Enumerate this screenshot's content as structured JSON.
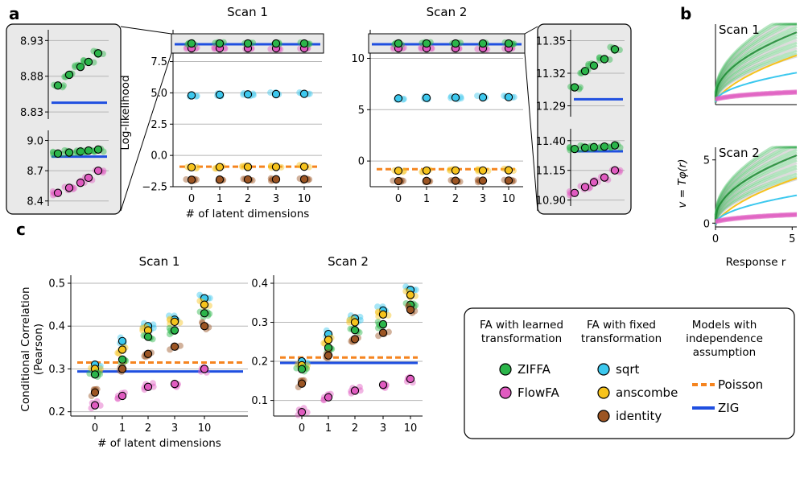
{
  "panel_letters": [
    "a",
    "b",
    "c"
  ],
  "colors": {
    "ZIFFA": "#2bb54a",
    "FlowFA": "#e05bc0",
    "sqrt": "#3cc8ee",
    "anscombe": "#f6c31c",
    "identity": "#9c5523",
    "Poisson": "#f5841f",
    "ZIG": "#1f4fe0",
    "grid": "#b5b5b5",
    "inset_bg": "#e9e9e9"
  },
  "legend": {
    "groups": [
      {
        "title": [
          "FA with learned",
          "transformation"
        ],
        "entries": [
          {
            "label": "ZIFFA",
            "kind": "marker",
            "key": "ZIFFA"
          },
          {
            "label": "FlowFA",
            "kind": "marker",
            "key": "FlowFA"
          }
        ]
      },
      {
        "title": [
          "FA with fixed",
          "transformation"
        ],
        "entries": [
          {
            "label": "sqrt",
            "kind": "marker",
            "key": "sqrt"
          },
          {
            "label": "anscombe",
            "kind": "marker",
            "key": "anscombe"
          },
          {
            "label": "identity",
            "kind": "marker",
            "key": "identity"
          }
        ]
      },
      {
        "title": [
          "Models with",
          "independence",
          "assumption"
        ],
        "entries": [
          {
            "label": "Poisson",
            "kind": "dashed-line",
            "key": "Poisson"
          },
          {
            "label": "ZIG",
            "kind": "line",
            "key": "ZIG"
          }
        ]
      }
    ]
  },
  "chart_data": [
    {
      "id": "a-scan1",
      "panel": "a",
      "type": "scatter",
      "title": "Scan 1",
      "xlabel": "# of latent dimensions",
      "ylabel": "Log-likelihood",
      "categories": [
        "0",
        "1",
        "2",
        "3",
        "10"
      ],
      "yticks": [
        -2.5,
        0.0,
        2.5,
        5.0,
        7.5
      ],
      "ytick_labels": [
        "−2.5",
        "0.0",
        "2.5",
        "5.0",
        "7.5"
      ],
      "ylim": [
        -2.5,
        9.4
      ],
      "grid": true,
      "series": [
        {
          "name": "sqrt",
          "values": [
            4.8,
            4.85,
            4.88,
            4.9,
            4.92
          ]
        },
        {
          "name": "anscombe",
          "values": [
            -0.95,
            -0.93,
            -0.92,
            -0.92,
            -0.9
          ]
        },
        {
          "name": "identity",
          "values": [
            -1.95,
            -1.93,
            -1.92,
            -1.91,
            -1.9
          ]
        }
      ],
      "hlines": [
        {
          "name": "Poisson",
          "value": -0.9
        },
        {
          "name": "ZIG",
          "value": 8.84
        }
      ],
      "top_band": {
        "ZIFFA": 8.88,
        "FlowFA": 8.55
      }
    },
    {
      "id": "a-scan1-inset-top",
      "panel": "a",
      "type": "scatter",
      "categories": [
        "0",
        "1",
        "2",
        "3",
        "10"
      ],
      "yticks": [
        8.83,
        8.88,
        8.93
      ],
      "ytick_labels": [
        "8.83",
        "8.88",
        "8.93"
      ],
      "ylim": [
        8.82,
        8.945
      ],
      "series": [
        {
          "name": "ZIFFA",
          "values": [
            8.867,
            8.882,
            8.893,
            8.9,
            8.912
          ]
        }
      ],
      "hlines": [
        {
          "name": "ZIG",
          "value": 8.843
        }
      ]
    },
    {
      "id": "a-scan1-inset-bottom",
      "panel": "a",
      "type": "scatter",
      "categories": [
        "0",
        "1",
        "2",
        "3",
        "10"
      ],
      "yticks": [
        8.4,
        8.7,
        9.0
      ],
      "ytick_labels": [
        "8.4",
        "8.7",
        "9.0"
      ],
      "ylim": [
        8.35,
        9.1
      ],
      "series": [
        {
          "name": "ZIFFA",
          "values": [
            8.87,
            8.88,
            8.89,
            8.9,
            8.91
          ]
        },
        {
          "name": "FlowFA",
          "values": [
            8.48,
            8.53,
            8.58,
            8.63,
            8.7
          ]
        }
      ],
      "hlines": [
        {
          "name": "ZIG",
          "value": 8.84
        }
      ]
    },
    {
      "id": "a-scan2",
      "panel": "a",
      "type": "scatter",
      "title": "Scan 2",
      "categories": [
        "0",
        "1",
        "2",
        "3",
        "10"
      ],
      "yticks": [
        0,
        5,
        10
      ],
      "ytick_labels": [
        "0",
        "5",
        "10"
      ],
      "ylim": [
        -2.5,
        12.0
      ],
      "grid": true,
      "series": [
        {
          "name": "sqrt",
          "values": [
            6.1,
            6.15,
            6.18,
            6.2,
            6.22
          ]
        },
        {
          "name": "anscombe",
          "values": [
            -0.95,
            -0.93,
            -0.92,
            -0.92,
            -0.9
          ]
        },
        {
          "name": "identity",
          "values": [
            -1.95,
            -1.93,
            -1.92,
            -1.91,
            -1.9
          ]
        }
      ],
      "hlines": [
        {
          "name": "Poisson",
          "value": -0.8
        },
        {
          "name": "ZIG",
          "value": 11.3
        }
      ],
      "top_band": {
        "ZIFFA": 11.33,
        "FlowFA": 11.0
      }
    },
    {
      "id": "a-scan2-inset-top",
      "panel": "a",
      "type": "scatter",
      "categories": [
        "0",
        "1",
        "2",
        "3",
        "10"
      ],
      "yticks": [
        11.29,
        11.32,
        11.35
      ],
      "ytick_labels": [
        "11.29",
        "11.32",
        "11.35"
      ],
      "ylim": [
        11.28,
        11.36
      ],
      "series": [
        {
          "name": "ZIFFA",
          "values": [
            11.307,
            11.322,
            11.327,
            11.333,
            11.342
          ]
        }
      ],
      "hlines": [
        {
          "name": "ZIG",
          "value": 11.296
        }
      ]
    },
    {
      "id": "a-scan2-inset-bottom",
      "panel": "a",
      "type": "scatter",
      "categories": [
        "0",
        "1",
        "2",
        "3",
        "10"
      ],
      "yticks": [
        10.9,
        11.15,
        11.4
      ],
      "ytick_labels": [
        "10.90",
        "11.15",
        "11.40"
      ],
      "ylim": [
        10.85,
        11.5
      ],
      "series": [
        {
          "name": "ZIFFA",
          "values": [
            11.33,
            11.34,
            11.345,
            11.35,
            11.36
          ]
        },
        {
          "name": "FlowFA",
          "values": [
            10.96,
            11.01,
            11.05,
            11.09,
            11.15
          ]
        }
      ],
      "hlines": [
        {
          "name": "ZIG",
          "value": 11.31
        }
      ]
    },
    {
      "id": "b",
      "panel": "b",
      "type": "line",
      "xlabel": "Response r",
      "ylabel": "v = Tφ(r)",
      "subplots": [
        {
          "title": "Scan 1",
          "show_axis_ticks": false
        },
        {
          "title": "Scan 2",
          "show_axis_ticks": true,
          "xticks": [
            0,
            5
          ],
          "yticks": [
            0,
            5
          ]
        }
      ],
      "xlim": [
        0,
        5.3
      ],
      "ylim": [
        -0.3,
        6.0
      ],
      "curves": [
        {
          "name": "ZIFFA",
          "form": "a*sqrt(r)+b",
          "a": 2.2,
          "b": 0.3
        },
        {
          "name": "anscombe",
          "form": "2*sqrt(r+3/8)-1.2",
          "a": 2,
          "b": -1.2
        },
        {
          "name": "sqrt",
          "form": "a*sqrt(r)+b",
          "a": 1.0,
          "b": -0.1
        },
        {
          "name": "FlowFA",
          "form": "a*log(1+r)+b",
          "a": 0.3,
          "b": 0.15
        }
      ]
    },
    {
      "id": "c-scan1",
      "panel": "c",
      "type": "scatter",
      "title": "Scan 1",
      "xlabel": "# of latent dimensions",
      "ylabel": "Conditional Correlation\n(Pearson)",
      "categories": [
        "0",
        "1",
        "2",
        "3",
        "10"
      ],
      "yticks": [
        0.2,
        0.3,
        0.4,
        0.5
      ],
      "ytick_labels": [
        "0.2",
        "0.3",
        "0.4",
        "0.5"
      ],
      "ylim": [
        0.19,
        0.5
      ],
      "grid": true,
      "series": [
        {
          "name": "sqrt",
          "values": [
            0.31,
            0.365,
            0.4,
            0.415,
            0.465
          ]
        },
        {
          "name": "anscombe",
          "values": [
            0.3,
            0.345,
            0.39,
            0.41,
            0.45
          ]
        },
        {
          "name": "ZIFFA",
          "values": [
            0.287,
            0.322,
            0.375,
            0.39,
            0.43
          ]
        },
        {
          "name": "identity",
          "values": [
            0.245,
            0.3,
            0.335,
            0.352,
            0.4
          ]
        },
        {
          "name": "FlowFA",
          "values": [
            0.215,
            0.237,
            0.258,
            0.265,
            0.3
          ]
        }
      ],
      "hlines": [
        {
          "name": "Poisson",
          "value": 0.315
        },
        {
          "name": "ZIG",
          "value": 0.294
        }
      ]
    },
    {
      "id": "c-scan2",
      "panel": "c",
      "type": "scatter",
      "title": "Scan 2",
      "categories": [
        "0",
        "1",
        "2",
        "3",
        "10"
      ],
      "yticks": [
        0.1,
        0.2,
        0.3,
        0.4
      ],
      "ytick_labels": [
        "0.1",
        "0.2",
        "0.3",
        "0.4"
      ],
      "ylim": [
        0.06,
        0.4
      ],
      "grid": true,
      "series": [
        {
          "name": "sqrt",
          "values": [
            0.2,
            0.27,
            0.31,
            0.33,
            0.383
          ]
        },
        {
          "name": "anscombe",
          "values": [
            0.19,
            0.255,
            0.3,
            0.32,
            0.37
          ]
        },
        {
          "name": "ZIFFA",
          "values": [
            0.18,
            0.235,
            0.28,
            0.295,
            0.345
          ]
        },
        {
          "name": "identity",
          "values": [
            0.143,
            0.215,
            0.257,
            0.273,
            0.332
          ]
        },
        {
          "name": "FlowFA",
          "values": [
            0.07,
            0.108,
            0.125,
            0.14,
            0.155
          ]
        }
      ],
      "hlines": [
        {
          "name": "Poisson",
          "value": 0.21
        },
        {
          "name": "ZIG",
          "value": 0.196
        }
      ]
    }
  ]
}
